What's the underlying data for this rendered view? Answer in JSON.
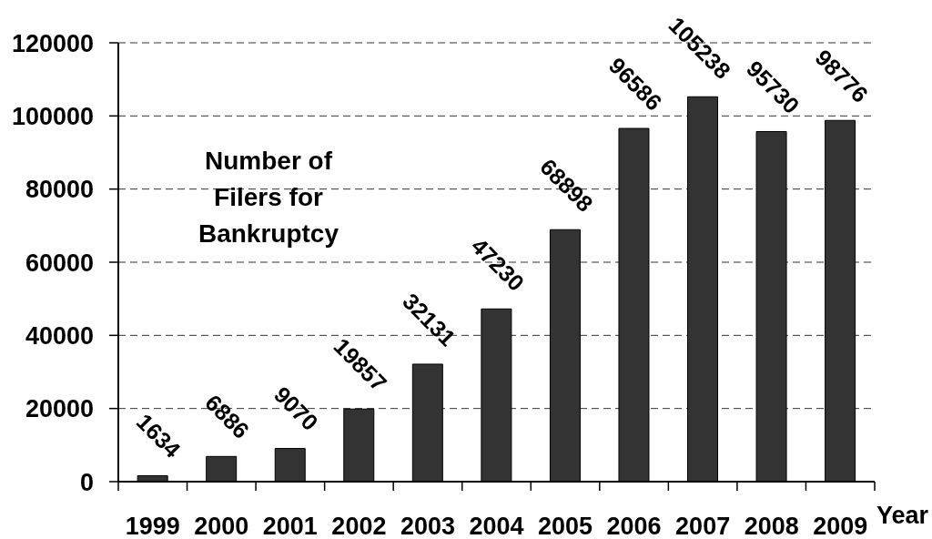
{
  "chart_data": {
    "type": "bar",
    "title": "Number of Filers for Bankruptcy",
    "xlabel": "Year",
    "categories": [
      "1999",
      "2000",
      "2001",
      "2002",
      "2003",
      "2004",
      "2005",
      "2006",
      "2007",
      "2008",
      "2009"
    ],
    "values": [
      1634,
      6886,
      9070,
      19857,
      32131,
      47230,
      68898,
      96586,
      105238,
      95730,
      98776
    ],
    "color": "#333333",
    "ylim": [
      0,
      120000
    ],
    "yticks": [
      0,
      20000,
      40000,
      60000,
      80000,
      100000,
      120000
    ],
    "grid": "y",
    "data_labels": true
  }
}
